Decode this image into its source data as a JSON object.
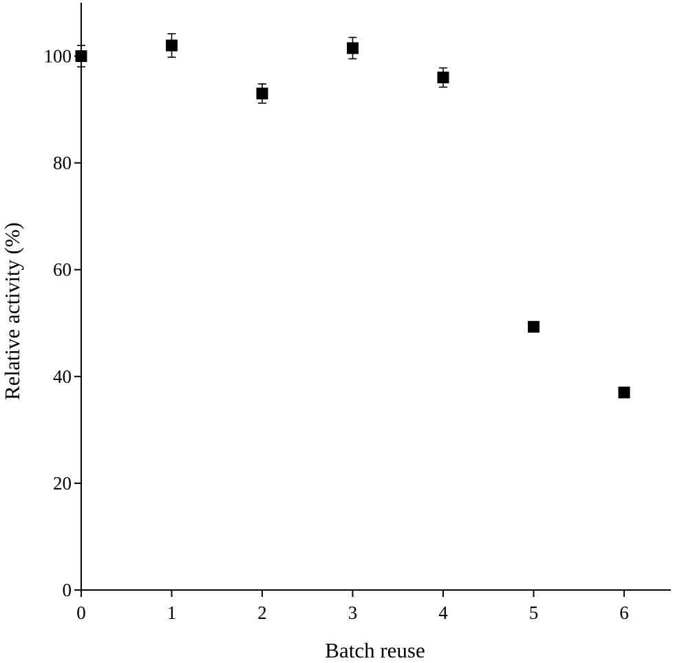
{
  "chart_data": {
    "type": "scatter",
    "title": "",
    "xlabel": "Batch reuse",
    "ylabel": "Relative activity (%)",
    "xlim": [
      0,
      6.5
    ],
    "ylim": [
      0,
      110
    ],
    "xticks": [
      0,
      1,
      2,
      3,
      4,
      5,
      6
    ],
    "yticks": [
      0,
      20,
      40,
      60,
      80,
      100
    ],
    "xtick_labels": [
      "0",
      "1",
      "2",
      "3",
      "4",
      "5",
      "6"
    ],
    "ytick_labels": [
      "0",
      "20",
      "40",
      "60",
      "80",
      "100"
    ],
    "grid": false,
    "marker": "filled-square",
    "marker_color": "#000000",
    "series": [
      {
        "x": [
          0,
          1,
          2,
          3,
          4,
          5,
          6
        ],
        "y": [
          100,
          102,
          93,
          101.5,
          96,
          49.3,
          37
        ],
        "error": [
          2,
          2.2,
          1.8,
          2,
          1.8,
          0,
          0
        ]
      }
    ]
  }
}
